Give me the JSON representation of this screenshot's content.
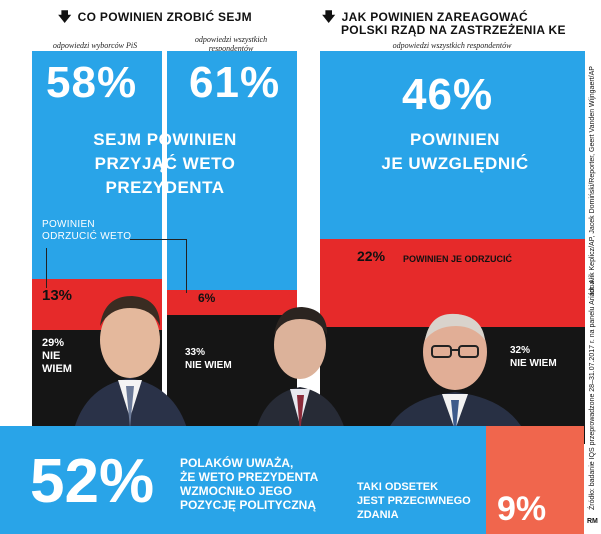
{
  "left_header": "CO POWINIEN ZROBIĆ SEJM",
  "right_header_line1": "JAK POWINIEN ZAREAGOWAĆ",
  "right_header_line2": "POLSKI RZĄD NA ZASTRZEŻENIA KE",
  "colors": {
    "blue": "#29a4e8",
    "red": "#e62a2a",
    "black": "#151515",
    "coral": "#f0664d"
  },
  "chart_data": [
    {
      "type": "bar",
      "title": "CO POWINIEN ZROBIĆ SEJM",
      "series": [
        {
          "group": "odpowiedzi wyborców PiS",
          "values": [
            {
              "label": "SEJM POWINIEN PRZYJĄĆ WETO PREZYDENTA",
              "value": 58
            },
            {
              "label": "POWINIEN ODRZUCIĆ WETO",
              "value": 13
            },
            {
              "label": "NIE WIEM",
              "value": 29
            }
          ]
        },
        {
          "group": "odpowiedzi wszystkich respondentów",
          "values": [
            {
              "label": "SEJM POWINIEN PRZYJĄĆ WETO PREZYDENTA",
              "value": 61
            },
            {
              "label": "POWINIEN ODRZUCIĆ WETO",
              "value": 6
            },
            {
              "label": "NIE WIEM",
              "value": 33
            }
          ]
        }
      ]
    },
    {
      "type": "bar",
      "title": "JAK POWINIEN ZAREAGOWAĆ POLSKI RZĄD NA ZASTRZEŻENIA KE",
      "series": [
        {
          "group": "odpowiedzi wszystkich respondentów",
          "values": [
            {
              "label": "POWINIEN JE UWZGLĘDNIĆ",
              "value": 46
            },
            {
              "label": "POWINIEN JE ODRZUCIĆ",
              "value": 22
            },
            {
              "label": "NIE WIEM",
              "value": 32
            }
          ]
        }
      ]
    }
  ],
  "labels": {
    "col1_sub": "odpowiedzi wyborców PiS",
    "col2_sub_line1": "odpowiedzi wszystkich",
    "col2_sub_line2": "respondentów",
    "col3_sub": "odpowiedzi wszystkich respondentów",
    "col1_yes": "58%",
    "col2_yes": "61%",
    "col3_yes": "46%",
    "sejm_yes_line1": "SEJM POWINIEN",
    "sejm_yes_line2": "PRZYJĄĆ WETO",
    "sejm_yes_line3": "PREZYDENTA",
    "rzad_yes_line1": "POWINIEN",
    "rzad_yes_line2": "JE UWZGLĘDNIĆ",
    "reject_weto_line1": "POWINIEN",
    "reject_weto_line2": "ODRZUCIĆ WETO",
    "col1_no": "13%",
    "col2_no": "6%",
    "col3_no": "22%",
    "col3_no_label": "POWINIEN JE ODRZUCIĆ",
    "col1_dk": "29%",
    "col1_dk_line1": "NIE",
    "col1_dk_line2": "WIEM",
    "col2_dk": "33%",
    "col2_dk_label": "NIE WIEM",
    "col3_dk": "32%",
    "col3_dk_label": "NIE WIEM"
  },
  "bottom": {
    "big_value": "52%",
    "text_line1": "POLAKÓW UWAŻA,",
    "text_line2": "ŻE WETO PREZYDENTA",
    "text_line3": "WZMOCNIŁO JEGO",
    "text_line4": "POZYCJĘ POLITYCZNĄ",
    "other_line1": "TAKI ODSETEK",
    "other_line2": "JEST PRZECIWNEGO",
    "other_line3": "ZDANIA",
    "other_value": "9%",
    "signature": "RM"
  },
  "credits": {
    "photo": "fot. Ałik Keplicz/AP, Jacek Domiński/Reporter, Geert Vanden Wijngaert/AP",
    "source": "Źródło: badanie IQS przeprowadzone 28–31.07.2017 r. na panelu Ariadna"
  }
}
